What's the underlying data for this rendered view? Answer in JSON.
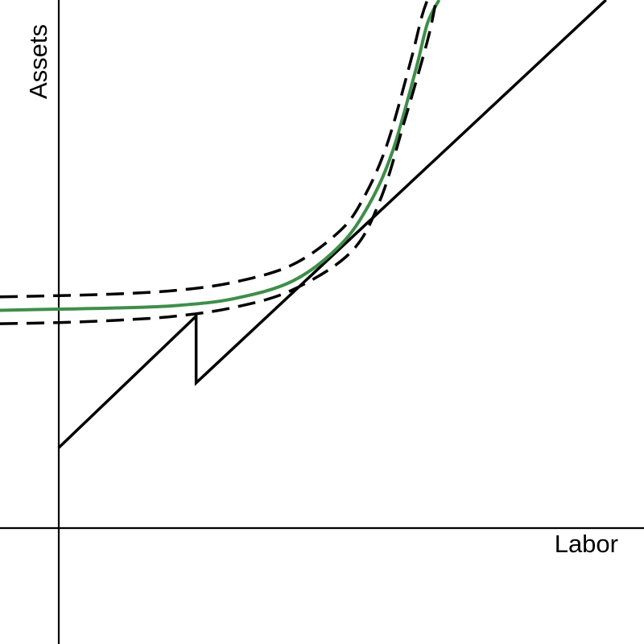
{
  "chart_data": {
    "type": "line",
    "title": "",
    "xlabel": "Labor",
    "ylabel": "Assets",
    "xlim": [
      -1.0,
      10.0
    ],
    "ylim": [
      -2.0,
      9.0
    ],
    "grid": false,
    "ticks_shown": false,
    "series": [
      {
        "style": "solid",
        "color": "#000000",
        "points": [
          [
            0,
            1.35
          ],
          [
            2.35,
            3.6
          ],
          [
            2.35,
            2.46
          ],
          [
            9.35,
            9.0
          ]
        ]
      },
      {
        "style": "solid",
        "color": "#3e8e4a",
        "points": [
          [
            -1.0,
            3.7
          ],
          [
            0,
            3.72
          ],
          [
            1.0,
            3.74
          ],
          [
            2.0,
            3.78
          ],
          [
            3.0,
            3.9
          ],
          [
            4.0,
            4.2
          ],
          [
            4.8,
            4.8
          ],
          [
            5.3,
            5.5
          ],
          [
            5.7,
            6.4
          ],
          [
            6.1,
            7.8
          ],
          [
            6.3,
            8.6
          ],
          [
            6.5,
            9.0
          ]
        ]
      },
      {
        "style": "dashed",
        "color": "#000000",
        "points": [
          [
            -1.0,
            3.93
          ],
          [
            0,
            3.95
          ],
          [
            1.0,
            3.98
          ],
          [
            2.0,
            4.04
          ],
          [
            3.0,
            4.18
          ],
          [
            4.0,
            4.48
          ],
          [
            4.8,
            5.05
          ],
          [
            5.2,
            5.6
          ],
          [
            5.6,
            6.5
          ],
          [
            6.0,
            7.9
          ],
          [
            6.2,
            8.7
          ],
          [
            6.3,
            9.0
          ]
        ]
      },
      {
        "style": "dashed",
        "color": "#000000",
        "points": [
          [
            -1.0,
            3.47
          ],
          [
            0,
            3.49
          ],
          [
            1.0,
            3.53
          ],
          [
            2.0,
            3.6
          ],
          [
            3.0,
            3.75
          ],
          [
            4.0,
            4.05
          ],
          [
            5.0,
            4.7
          ],
          [
            5.5,
            5.6
          ],
          [
            5.9,
            6.9
          ],
          [
            6.3,
            8.3
          ],
          [
            6.45,
            9.0
          ]
        ]
      }
    ]
  }
}
